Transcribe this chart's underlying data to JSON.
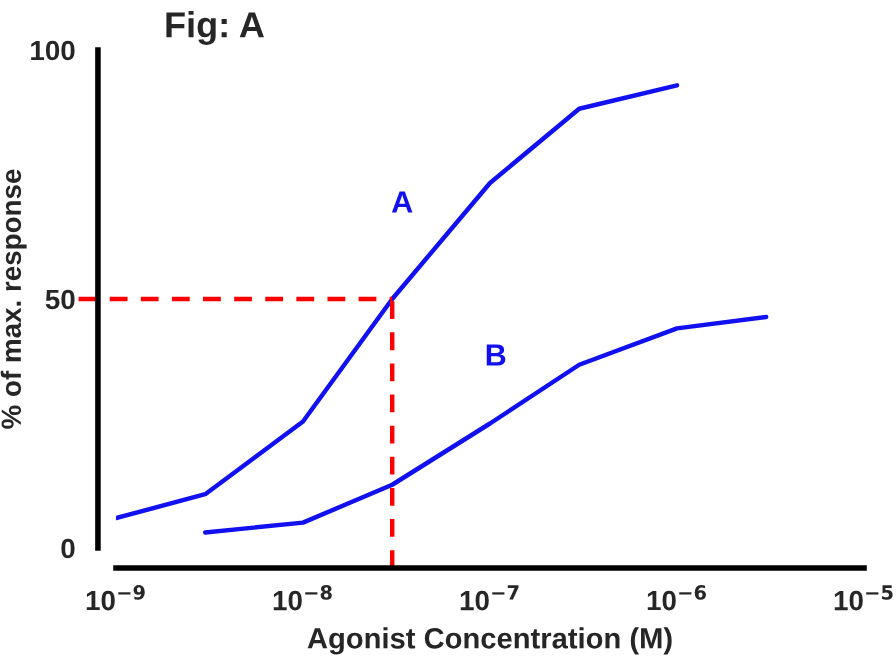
{
  "chart_data": {
    "type": "line",
    "title": "Fig: A",
    "xlabel": "Agonist Concentration (M)",
    "ylabel": "% of max. response",
    "log": "x",
    "xlim": [
      1e-09,
      1e-05
    ],
    "ylim": [
      0,
      100
    ],
    "xticks": [
      {
        "value": 1e-09,
        "label": "10$^{−9}$"
      },
      {
        "value": 1e-08,
        "label": "10$^{−8}$"
      },
      {
        "value": 1e-07,
        "label": "10$^{−7}$"
      },
      {
        "value": 1e-06,
        "label": "10$^{−6}$"
      },
      {
        "value": 1e-05,
        "label": "10$^{−5}$"
      }
    ],
    "yticks": [
      0,
      50,
      100
    ],
    "series": [
      {
        "name": "A",
        "color": "#1010f0",
        "x": [
          1e-09,
          3e-09,
          1e-08,
          3e-08,
          1e-07,
          3e-07,
          1e-06
        ],
        "values": [
          6,
          10.8,
          25.4,
          50,
          73.3,
          88.2,
          92.9
        ]
      },
      {
        "name": "B",
        "color": "#1010f0",
        "x": [
          3e-09,
          1e-08,
          3e-08,
          1e-07,
          3e-07,
          1e-06,
          3e-06
        ],
        "values": [
          3.1,
          5.1,
          12.7,
          25,
          36.8,
          44.1,
          46.4
        ]
      }
    ],
    "ref_lines": [
      {
        "axis": "y",
        "value": 50,
        "color": "#ff0000",
        "line_style": "dashed"
      },
      {
        "axis": "x",
        "value": 3e-08,
        "color": "#ff0000",
        "line_style": "dashed"
      }
    ],
    "grid": false,
    "legend": false,
    "marker": "none",
    "line_style": "solid"
  }
}
